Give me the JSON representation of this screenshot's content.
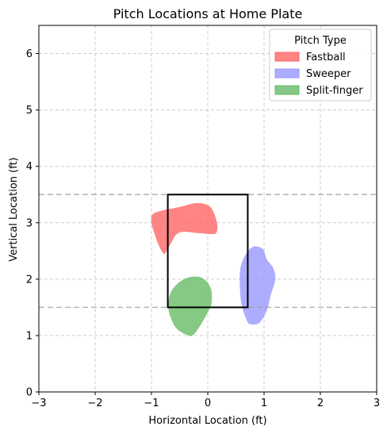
{
  "chart_data": {
    "type": "area",
    "title": "Pitch Locations at Home Plate",
    "xlabel": "Horizontal Location (ft)",
    "ylabel": "Vertical Location (ft)",
    "xlim": [
      -3,
      3
    ],
    "ylim": [
      0,
      6.5
    ],
    "xticks": [
      -3,
      -2,
      -1,
      0,
      1,
      2,
      3
    ],
    "yticks": [
      0,
      1,
      2,
      3,
      4,
      5,
      6
    ],
    "grid": true,
    "legend": {
      "title": "Pitch Type",
      "placement": "top-right"
    },
    "strike_zone": {
      "x": [
        -0.71,
        0.71
      ],
      "y": [
        1.5,
        3.5
      ]
    },
    "reference_lines_y": [
      1.5,
      3.5
    ],
    "series": [
      {
        "name": "Fastball",
        "color": "#ff6666",
        "region": [
          [
            -0.78,
            2.45
          ],
          [
            -0.72,
            2.52
          ],
          [
            -0.63,
            2.68
          ],
          [
            -0.55,
            2.8
          ],
          [
            -0.42,
            2.84
          ],
          [
            -0.2,
            2.82
          ],
          [
            0.05,
            2.8
          ],
          [
            0.15,
            2.82
          ],
          [
            0.17,
            2.95
          ],
          [
            0.12,
            3.15
          ],
          [
            0.02,
            3.3
          ],
          [
            -0.2,
            3.35
          ],
          [
            -0.5,
            3.28
          ],
          [
            -0.8,
            3.22
          ],
          [
            -0.98,
            3.15
          ],
          [
            -1.0,
            3.0
          ],
          [
            -0.95,
            2.82
          ],
          [
            -0.87,
            2.6
          ]
        ]
      },
      {
        "name": "Sweeper",
        "color": "#9999ff",
        "region": [
          [
            0.68,
            1.3
          ],
          [
            0.75,
            1.2
          ],
          [
            0.92,
            1.23
          ],
          [
            1.05,
            1.45
          ],
          [
            1.12,
            1.72
          ],
          [
            1.2,
            2.0
          ],
          [
            1.16,
            2.2
          ],
          [
            1.05,
            2.35
          ],
          [
            0.98,
            2.53
          ],
          [
            0.82,
            2.58
          ],
          [
            0.68,
            2.45
          ],
          [
            0.58,
            2.2
          ],
          [
            0.57,
            1.88
          ],
          [
            0.6,
            1.55
          ]
        ]
      },
      {
        "name": "Split-finger",
        "color": "#66bb66",
        "region": [
          [
            -0.65,
            1.3
          ],
          [
            -0.55,
            1.12
          ],
          [
            -0.35,
            1.0
          ],
          [
            -0.25,
            1.02
          ],
          [
            -0.12,
            1.2
          ],
          [
            0.02,
            1.45
          ],
          [
            0.07,
            1.6
          ],
          [
            0.05,
            1.85
          ],
          [
            -0.1,
            2.02
          ],
          [
            -0.3,
            2.04
          ],
          [
            -0.5,
            1.95
          ],
          [
            -0.66,
            1.76
          ],
          [
            -0.7,
            1.5
          ]
        ]
      }
    ]
  }
}
